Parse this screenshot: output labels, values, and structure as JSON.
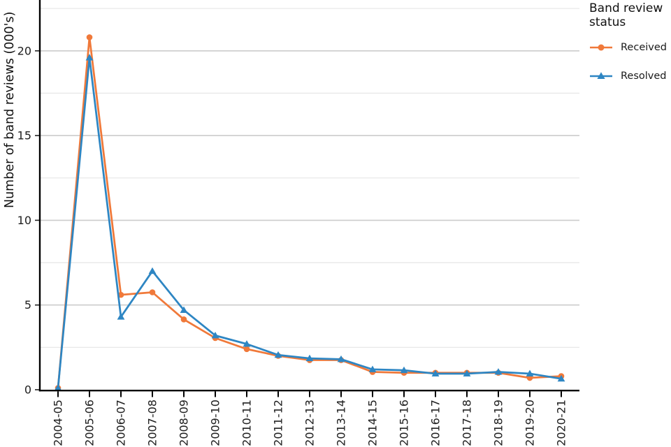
{
  "chart_data": {
    "type": "line",
    "title": "",
    "legend_title": "Band review status",
    "legend_position": "right",
    "xlabel": "",
    "ylabel": "Number of band reviews (000's)",
    "categories": [
      "2004-05",
      "2005-06",
      "2006-07",
      "2007-08",
      "2008-09",
      "2009-10",
      "2010-11",
      "2011-12",
      "2012-13",
      "2013-14",
      "2014-15",
      "2015-16",
      "2016-17",
      "2017-18",
      "2018-19",
      "2019-20",
      "2020-21"
    ],
    "series": [
      {
        "name": "Received",
        "marker": "circle",
        "color": "#F0793A",
        "values": [
          0.1,
          20.8,
          5.6,
          5.75,
          4.15,
          3.05,
          2.4,
          2.0,
          1.75,
          1.75,
          1.05,
          1.0,
          1.0,
          1.0,
          1.0,
          0.7,
          0.8
        ]
      },
      {
        "name": "Resolved",
        "marker": "triangle",
        "color": "#2E86C3",
        "values": [
          0.1,
          19.6,
          4.3,
          7.0,
          4.7,
          3.2,
          2.7,
          2.05,
          1.85,
          1.8,
          1.2,
          1.15,
          0.95,
          0.95,
          1.05,
          0.95,
          0.65
        ]
      }
    ],
    "ylim": [
      0,
      23
    ],
    "yticks": [
      0,
      5,
      10,
      15,
      20
    ],
    "minor_gridlines": [
      2.5,
      7.5,
      12.5,
      17.5,
      22.5
    ],
    "grid": true,
    "colors": {
      "major_gridline": "#cccccc",
      "minor_gridline": "#e8e8e8",
      "axis": "#000000",
      "tick_label": "#202020"
    }
  }
}
